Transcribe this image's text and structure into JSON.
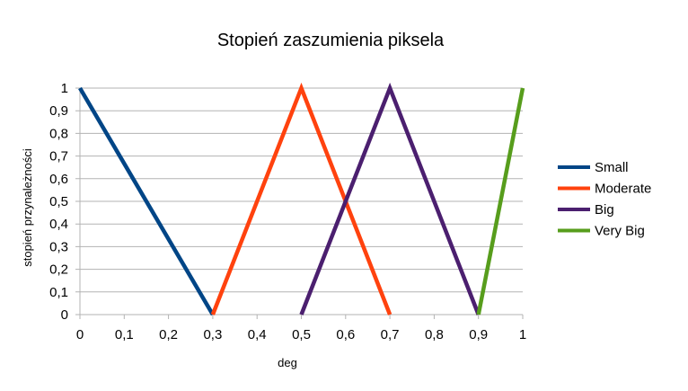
{
  "chart_data": {
    "type": "line",
    "title": "Stopień zaszumienia piksela",
    "xlabel": "deg",
    "ylabel": "stopień przynależności",
    "xlim": [
      0,
      1
    ],
    "ylim": [
      0,
      1
    ],
    "x_ticks": [
      "0",
      "0,1",
      "0,2",
      "0,3",
      "0,4",
      "0,5",
      "0,6",
      "0,7",
      "0,8",
      "0,9",
      "1"
    ],
    "y_ticks": [
      "0",
      "0,1",
      "0,2",
      "0,3",
      "0,4",
      "0,5",
      "0,6",
      "0,7",
      "0,8",
      "0,9",
      "1"
    ],
    "grid": "horizontal",
    "legend_position": "right",
    "series": [
      {
        "name": "Small",
        "color": "#004586",
        "points": [
          [
            0,
            1
          ],
          [
            0.3,
            0
          ]
        ]
      },
      {
        "name": "Moderate",
        "color": "#ff420e",
        "points": [
          [
            0.3,
            0
          ],
          [
            0.5,
            1
          ],
          [
            0.7,
            0
          ]
        ]
      },
      {
        "name": "Big",
        "color": "#4b1f6f",
        "points": [
          [
            0.5,
            0
          ],
          [
            0.7,
            1
          ],
          [
            0.9,
            0
          ]
        ]
      },
      {
        "name": "Very Big",
        "color": "#579d1c",
        "points": [
          [
            0.9,
            0
          ],
          [
            1,
            1
          ]
        ]
      }
    ]
  }
}
